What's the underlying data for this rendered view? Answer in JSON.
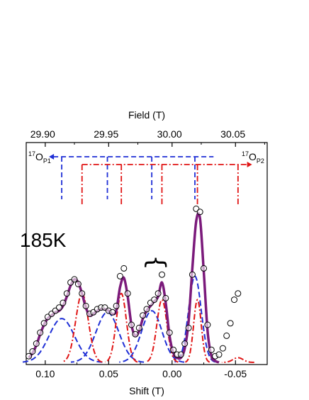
{
  "chart_data": {
    "type": "line",
    "title": "",
    "xlabel": "Shift (T)",
    "x2label": "Field (T)",
    "ylabel": "",
    "xlim": [
      0.115,
      -0.075
    ],
    "ylim": [
      0,
      1.0
    ],
    "grid": false,
    "legend": "none",
    "bottom_ticks": [
      {
        "v": 0.1,
        "label": "0.10"
      },
      {
        "v": 0.05,
        "label": "0.05"
      },
      {
        "v": 0.0,
        "label": "0.00"
      },
      {
        "v": -0.05,
        "label": "-0.05"
      }
    ],
    "top_ticks": [
      {
        "v": 29.9,
        "label": "29.90"
      },
      {
        "v": 29.95,
        "label": "29.95"
      },
      {
        "v": 30.0,
        "label": "30.00"
      },
      {
        "v": 30.05,
        "label": "30.05"
      }
    ],
    "field_at_zero_shift": 30.002,
    "annotations": {
      "sample": "185K",
      "brace": "}",
      "site1": {
        "base": "O",
        "sup": "17",
        "sub": "P1"
      },
      "site2": {
        "base": "O",
        "sup": "17",
        "sub": "P2"
      }
    },
    "colors": {
      "data": "#000000",
      "fit": "#7b1a7b",
      "p1": "#1f2fd6",
      "p2": "#e01515"
    },
    "p1_sticks": {
      "x_start": 0.087,
      "x_end": -0.031,
      "lines": [
        0.087,
        0.051,
        0.016,
        -0.018
      ],
      "color": "#1f2fd6"
    },
    "p2_sticks": {
      "x_start": 0.071,
      "x_end": -0.053,
      "lines": [
        0.071,
        0.04,
        0.008,
        -0.02,
        -0.052
      ],
      "color": "#e01515"
    },
    "series": [
      {
        "name": "",
        "style": "open-circles",
        "x": [
          0.113,
          0.11,
          0.107,
          0.104,
          0.101,
          0.098,
          0.095,
          0.092,
          0.089,
          0.086,
          0.083,
          0.08,
          0.077,
          0.074,
          0.071,
          0.068,
          0.065,
          0.062,
          0.059,
          0.056,
          0.053,
          0.05,
          0.047,
          0.044,
          0.041,
          0.038,
          0.035,
          0.032,
          0.029,
          0.026,
          0.023,
          0.02,
          0.017,
          0.014,
          0.011,
          0.008,
          0.005,
          0.002,
          -0.001,
          -0.004,
          -0.007,
          -0.01,
          -0.013,
          -0.016,
          -0.019,
          -0.022,
          -0.025,
          -0.028,
          -0.031,
          -0.034,
          -0.037,
          -0.04,
          -0.043,
          -0.046,
          -0.049,
          -0.052
        ],
        "y": [
          0.04,
          0.07,
          0.12,
          0.19,
          0.25,
          0.29,
          0.31,
          0.33,
          0.35,
          0.38,
          0.44,
          0.51,
          0.53,
          0.5,
          0.44,
          0.36,
          0.31,
          0.32,
          0.34,
          0.35,
          0.35,
          0.33,
          0.32,
          0.36,
          0.55,
          0.6,
          0.44,
          0.24,
          0.18,
          0.22,
          0.3,
          0.34,
          0.38,
          0.4,
          0.44,
          0.56,
          0.41,
          0.19,
          0.08,
          0.05,
          0.05,
          0.12,
          0.22,
          0.56,
          0.98,
          0.96,
          0.6,
          0.24,
          0.08,
          0.04,
          0.05,
          0.09,
          0.17,
          0.25,
          0.4,
          0.44
        ]
      },
      {
        "name": "",
        "style": "fit",
        "x": [
          0.113,
          0.11,
          0.107,
          0.104,
          0.101,
          0.098,
          0.095,
          0.092,
          0.089,
          0.086,
          0.083,
          0.08,
          0.077,
          0.074,
          0.071,
          0.068,
          0.065,
          0.062,
          0.059,
          0.056,
          0.053,
          0.05,
          0.047,
          0.044,
          0.041,
          0.038,
          0.035,
          0.032,
          0.029,
          0.026,
          0.023,
          0.02,
          0.017,
          0.014,
          0.011,
          0.008,
          0.005,
          0.002,
          -0.001,
          -0.004,
          -0.007,
          -0.01,
          -0.013,
          -0.016,
          -0.019,
          -0.022,
          -0.025,
          -0.028,
          -0.031,
          -0.034,
          -0.037
        ],
        "y": [
          0.03,
          0.06,
          0.11,
          0.18,
          0.24,
          0.28,
          0.3,
          0.32,
          0.33,
          0.36,
          0.42,
          0.49,
          0.53,
          0.51,
          0.44,
          0.35,
          0.3,
          0.31,
          0.33,
          0.34,
          0.34,
          0.33,
          0.31,
          0.33,
          0.48,
          0.54,
          0.42,
          0.24,
          0.17,
          0.2,
          0.28,
          0.33,
          0.36,
          0.39,
          0.42,
          0.51,
          0.38,
          0.17,
          0.06,
          0.03,
          0.03,
          0.09,
          0.26,
          0.6,
          0.9,
          0.92,
          0.58,
          0.2,
          0.04,
          0.01,
          0.0
        ]
      },
      {
        "name": "",
        "style": "p1-components",
        "peaks": [
          {
            "x": 0.087,
            "a": 0.28,
            "w": 0.01
          },
          {
            "x": 0.051,
            "a": 0.32,
            "w": 0.009
          },
          {
            "x": 0.016,
            "a": 0.33,
            "w": 0.008
          },
          {
            "x": -0.018,
            "a": 0.55,
            "w": 0.005
          }
        ]
      },
      {
        "name": "",
        "style": "p2-components",
        "peaks": [
          {
            "x": 0.071,
            "a": 0.44,
            "w": 0.005
          },
          {
            "x": 0.04,
            "a": 0.44,
            "w": 0.004
          },
          {
            "x": 0.008,
            "a": 0.4,
            "w": 0.004
          },
          {
            "x": -0.02,
            "a": 0.4,
            "w": 0.003
          },
          {
            "x": -0.052,
            "a": 0.03,
            "w": 0.004
          }
        ]
      }
    ]
  }
}
